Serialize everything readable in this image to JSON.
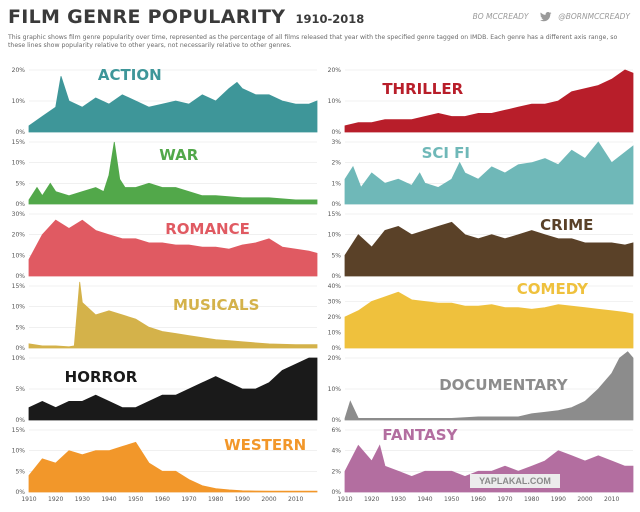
{
  "header": {
    "title": "FILM GENRE POPULARITY",
    "years": "1910-2018",
    "subtitle": "This graphic shows film genre popularity over time, represented as the percentage of all films released that year with the specified genre tagged on IMDB. Each genre has a different axis range, so these lines show popularity relative to other years, not necessarily relative to other genres.",
    "credit_author": "BO MCCREADY",
    "credit_handle": "@BORNMCCREADY"
  },
  "watermark": "YAPLAKAL.COM",
  "x_axis": {
    "ticks": [
      "1910",
      "1920",
      "1930",
      "1940",
      "1950",
      "1960",
      "1970",
      "1980",
      "1990",
      "2000",
      "2010"
    ]
  },
  "chart_data": [
    {
      "type": "area",
      "title": "ACTION",
      "color": "#3e9699",
      "ylim": [
        0,
        20
      ],
      "yticks": [
        "0%",
        "10%",
        "20%"
      ],
      "x": [
        1910,
        1915,
        1920,
        1922,
        1925,
        1930,
        1935,
        1940,
        1945,
        1950,
        1955,
        1960,
        1965,
        1970,
        1975,
        1980,
        1985,
        1988,
        1990,
        1995,
        2000,
        2005,
        2010,
        2015,
        2018
      ],
      "values": [
        2,
        5,
        8,
        18,
        10,
        8,
        11,
        9,
        12,
        10,
        8,
        9,
        10,
        9,
        12,
        10,
        14,
        16,
        14,
        12,
        12,
        10,
        9,
        9,
        10
      ]
    },
    {
      "type": "area",
      "title": "THRILLER",
      "color": "#b81e2a",
      "ylim": [
        0,
        20
      ],
      "yticks": [
        "0%",
        "10%",
        "20%"
      ],
      "x": [
        1910,
        1915,
        1920,
        1925,
        1930,
        1935,
        1940,
        1945,
        1950,
        1955,
        1960,
        1965,
        1970,
        1975,
        1980,
        1985,
        1990,
        1995,
        2000,
        2005,
        2010,
        2015,
        2018
      ],
      "values": [
        2,
        3,
        3,
        4,
        4,
        4,
        5,
        6,
        5,
        5,
        6,
        6,
        7,
        8,
        9,
        9,
        10,
        13,
        14,
        15,
        17,
        20,
        19
      ]
    },
    {
      "type": "area",
      "title": "WAR",
      "color": "#52a84a",
      "ylim": [
        0,
        15
      ],
      "yticks": [
        "0%",
        "5%",
        "10%",
        "15%"
      ],
      "x": [
        1910,
        1913,
        1915,
        1918,
        1920,
        1925,
        1930,
        1935,
        1938,
        1940,
        1942,
        1944,
        1946,
        1950,
        1955,
        1960,
        1965,
        1970,
        1975,
        1980,
        1990,
        2000,
        2010,
        2018
      ],
      "values": [
        1,
        4,
        2,
        5,
        3,
        2,
        3,
        4,
        3,
        7,
        15,
        6,
        4,
        4,
        5,
        4,
        4,
        3,
        2,
        2,
        1.5,
        1.5,
        1,
        1
      ]
    },
    {
      "type": "area",
      "title": "SCI FI",
      "color": "#6fb8b8",
      "ylim": [
        0,
        3
      ],
      "yticks": [
        "0%",
        "1%",
        "2%",
        "3%"
      ],
      "x": [
        1910,
        1913,
        1916,
        1920,
        1925,
        1930,
        1935,
        1938,
        1940,
        1945,
        1950,
        1953,
        1955,
        1960,
        1965,
        1970,
        1975,
        1980,
        1985,
        1990,
        1995,
        2000,
        2005,
        2010,
        2015,
        2018
      ],
      "values": [
        1.2,
        1.8,
        0.8,
        1.5,
        1.0,
        1.2,
        0.9,
        1.5,
        1.0,
        0.8,
        1.2,
        2.0,
        1.5,
        1.2,
        1.8,
        1.5,
        1.9,
        2.0,
        2.2,
        1.9,
        2.6,
        2.2,
        3.0,
        2.0,
        2.5,
        2.8
      ]
    },
    {
      "type": "area",
      "title": "ROMANCE",
      "color": "#e05a62",
      "ylim": [
        0,
        30
      ],
      "yticks": [
        "0%",
        "10%",
        "20%",
        "30%"
      ],
      "x": [
        1910,
        1915,
        1920,
        1925,
        1930,
        1935,
        1940,
        1945,
        1950,
        1955,
        1960,
        1965,
        1970,
        1975,
        1980,
        1985,
        1990,
        1995,
        2000,
        2005,
        2010,
        2015,
        2018
      ],
      "values": [
        8,
        20,
        27,
        23,
        27,
        22,
        20,
        18,
        18,
        16,
        16,
        15,
        15,
        14,
        14,
        13,
        15,
        16,
        18,
        14,
        13,
        12,
        11
      ]
    },
    {
      "type": "area",
      "title": "CRIME",
      "color": "#5a4128",
      "ylim": [
        0,
        15
      ],
      "yticks": [
        "0%",
        "5%",
        "10%",
        "15%"
      ],
      "x": [
        1910,
        1915,
        1920,
        1925,
        1930,
        1935,
        1940,
        1945,
        1950,
        1955,
        1960,
        1965,
        1970,
        1975,
        1980,
        1985,
        1990,
        1995,
        2000,
        2005,
        2010,
        2015,
        2018
      ],
      "values": [
        5,
        10,
        7,
        11,
        12,
        10,
        11,
        12,
        13,
        10,
        9,
        10,
        9,
        10,
        11,
        10,
        9,
        9,
        8,
        8,
        8,
        7.5,
        8
      ]
    },
    {
      "type": "area",
      "title": "MUSICALS",
      "color": "#d4b24a",
      "ylim": [
        0,
        15
      ],
      "yticks": [
        "0%",
        "5%",
        "10%",
        "15%"
      ],
      "x": [
        1910,
        1915,
        1920,
        1925,
        1927,
        1929,
        1930,
        1935,
        1940,
        1945,
        1950,
        1955,
        1960,
        1965,
        1970,
        1975,
        1980,
        1985,
        1990,
        2000,
        2010,
        2018
      ],
      "values": [
        1,
        0.5,
        0.5,
        0.3,
        0.5,
        16,
        11,
        8,
        9,
        8,
        7,
        5,
        4,
        3.5,
        3,
        2.5,
        2,
        1.8,
        1.5,
        1,
        0.8,
        0.8
      ]
    },
    {
      "type": "area",
      "title": "COMEDY",
      "color": "#efc13d",
      "ylim": [
        0,
        40
      ],
      "yticks": [
        "0%",
        "10%",
        "20%",
        "30%",
        "40%"
      ],
      "x": [
        1910,
        1915,
        1920,
        1925,
        1930,
        1935,
        1940,
        1945,
        1950,
        1955,
        1960,
        1965,
        1970,
        1975,
        1980,
        1985,
        1990,
        1995,
        2000,
        2005,
        2010,
        2015,
        2018
      ],
      "values": [
        20,
        24,
        30,
        33,
        36,
        31,
        30,
        29,
        29,
        27,
        27,
        28,
        26,
        26,
        25,
        26,
        28,
        27,
        26,
        25,
        24,
        23,
        22
      ]
    },
    {
      "type": "area",
      "title": "HORROR",
      "color": "#1a1a1a",
      "ylim": [
        0,
        10
      ],
      "yticks": [
        "0%",
        "5%",
        "10%"
      ],
      "x": [
        1910,
        1915,
        1920,
        1925,
        1930,
        1935,
        1940,
        1945,
        1950,
        1955,
        1960,
        1965,
        1970,
        1975,
        1980,
        1985,
        1990,
        1995,
        2000,
        2005,
        2010,
        2015,
        2018
      ],
      "values": [
        2,
        3,
        2,
        3,
        3,
        4,
        3,
        2,
        2,
        3,
        4,
        4,
        5,
        6,
        7,
        6,
        5,
        5,
        6,
        8,
        9,
        10,
        10
      ]
    },
    {
      "type": "area",
      "title": "DOCUMENTARY",
      "color": "#8c8c8c",
      "ylim": [
        0,
        20
      ],
      "yticks": [
        "0%",
        "10%",
        "20%"
      ],
      "x": [
        1910,
        1912,
        1915,
        1920,
        1925,
        1930,
        1940,
        1950,
        1960,
        1970,
        1975,
        1980,
        1985,
        1990,
        1995,
        2000,
        2005,
        2010,
        2013,
        2016,
        2018
      ],
      "values": [
        0.5,
        6,
        0.5,
        0.5,
        0.5,
        0.5,
        0.5,
        0.5,
        1,
        1,
        1,
        2,
        2.5,
        3,
        4,
        6,
        10,
        15,
        20,
        22,
        20
      ]
    },
    {
      "type": "area",
      "title": "WESTERN",
      "color": "#f2972a",
      "ylim": [
        0,
        15
      ],
      "yticks": [
        "0%",
        "5%",
        "10%",
        "15%"
      ],
      "x": [
        1910,
        1915,
        1920,
        1925,
        1930,
        1935,
        1940,
        1945,
        1950,
        1955,
        1960,
        1965,
        1970,
        1975,
        1980,
        1985,
        1990,
        2000,
        2010,
        2018
      ],
      "values": [
        4,
        8,
        7,
        10,
        9,
        10,
        10,
        11,
        12,
        7,
        5,
        5,
        3,
        1.5,
        0.8,
        0.5,
        0.3,
        0.2,
        0.2,
        0.2
      ]
    },
    {
      "type": "area",
      "title": "FANTASY",
      "color": "#b36ea0",
      "ylim": [
        0,
        6
      ],
      "yticks": [
        "0%",
        "2%",
        "4%",
        "6%"
      ],
      "x": [
        1910,
        1915,
        1920,
        1923,
        1925,
        1930,
        1935,
        1940,
        1945,
        1950,
        1955,
        1960,
        1965,
        1970,
        1975,
        1980,
        1985,
        1990,
        1995,
        2000,
        2005,
        2010,
        2015,
        2018
      ],
      "values": [
        2,
        4.5,
        3,
        4.5,
        2.5,
        2,
        1.5,
        2,
        2,
        2,
        1.5,
        2,
        2,
        2.5,
        2,
        2.5,
        3,
        4,
        3.5,
        3,
        3.5,
        3,
        2.5,
        2.5
      ]
    }
  ]
}
